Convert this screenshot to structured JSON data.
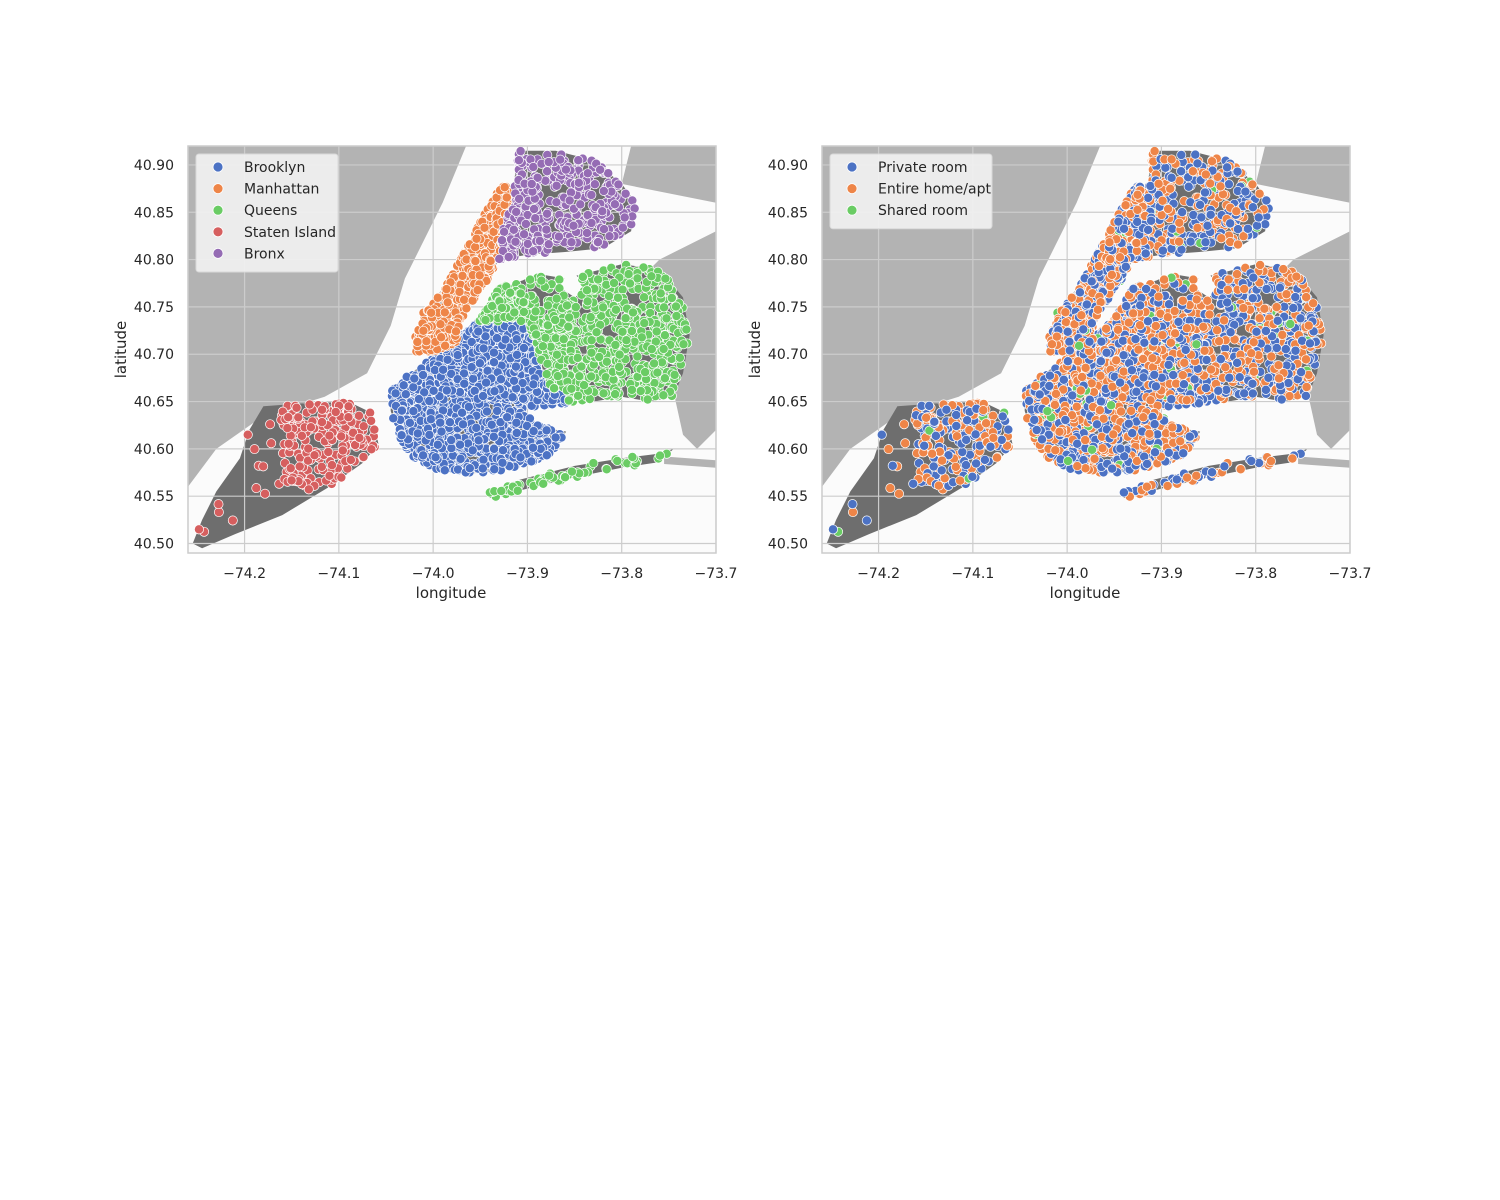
{
  "chart_data": [
    {
      "type": "scatter",
      "title": "",
      "xlabel": "longitude",
      "ylabel": "latitude",
      "xlim": [
        -74.26,
        -73.7
      ],
      "ylim": [
        40.49,
        40.92
      ],
      "xticks": [
        "−74.2",
        "−74.1",
        "−74.0",
        "−73.9",
        "−73.8",
        "−73.7"
      ],
      "yticks": [
        "40.50",
        "40.55",
        "40.60",
        "40.65",
        "40.70",
        "40.75",
        "40.80",
        "40.85",
        "40.90"
      ],
      "xtick_values": [
        -74.2,
        -74.1,
        -74.0,
        -73.9,
        -73.8,
        -73.7
      ],
      "ytick_values": [
        40.5,
        40.55,
        40.6,
        40.65,
        40.7,
        40.75,
        40.8,
        40.85,
        40.9
      ],
      "grid": true,
      "background": "map of New York City",
      "legend_position": "upper-left",
      "series": [
        {
          "name": "Brooklyn",
          "color": "#4c72c4",
          "region": {
            "lon": [
              -74.04,
              -73.85
            ],
            "lat": [
              40.575,
              40.735
            ]
          }
        },
        {
          "name": "Manhattan",
          "color": "#ee8548",
          "region": {
            "lon": [
              -74.02,
              -73.91
            ],
            "lat": [
              40.7,
              40.88
            ]
          }
        },
        {
          "name": "Queens",
          "color": "#6acc64",
          "region": {
            "lon": [
              -73.96,
              -73.71
            ],
            "lat": [
              40.57,
              40.8
            ]
          }
        },
        {
          "name": "Staten Island",
          "color": "#d65f5f",
          "region": {
            "lon": [
              -74.25,
              -74.06
            ],
            "lat": [
              40.5,
              40.65
            ]
          }
        },
        {
          "name": "Bronx",
          "color": "#956cb4",
          "region": {
            "lon": [
              -73.93,
              -73.78
            ],
            "lat": [
              40.81,
              40.91
            ]
          }
        }
      ]
    },
    {
      "type": "scatter",
      "title": "",
      "xlabel": "longitude",
      "ylabel": "latitude",
      "xlim": [
        -74.26,
        -73.7
      ],
      "ylim": [
        40.49,
        40.92
      ],
      "xticks": [
        "−74.2",
        "−74.1",
        "−74.0",
        "−73.9",
        "−73.8",
        "−73.7"
      ],
      "yticks": [
        "40.50",
        "40.55",
        "40.60",
        "40.65",
        "40.70",
        "40.75",
        "40.80",
        "40.85",
        "40.90"
      ],
      "xtick_values": [
        -74.2,
        -74.1,
        -74.0,
        -73.9,
        -73.8,
        -73.7
      ],
      "ytick_values": [
        40.5,
        40.55,
        40.6,
        40.65,
        40.7,
        40.75,
        40.8,
        40.85,
        40.9
      ],
      "grid": true,
      "background": "map of New York City",
      "legend_position": "upper-left",
      "series": [
        {
          "name": "Private room",
          "color": "#4c72c4"
        },
        {
          "name": "Entire home/apt",
          "color": "#ee8548"
        },
        {
          "name": "Shared room",
          "color": "#6acc64"
        }
      ]
    }
  ]
}
